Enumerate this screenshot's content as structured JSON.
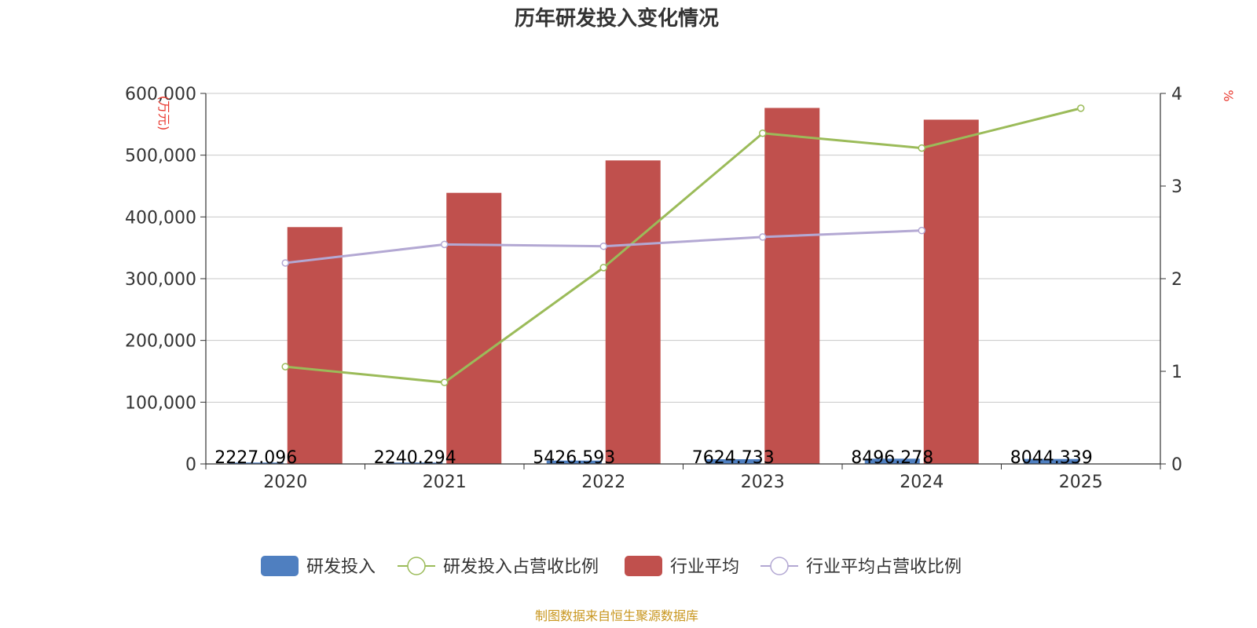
{
  "title": "历年研发投入变化情况",
  "source": "制图数据来自恒生聚源数据库",
  "chart_data": {
    "type": "bar",
    "categories": [
      "2020",
      "2021",
      "2022",
      "2023",
      "2024",
      "2025"
    ],
    "y_left": {
      "unit": "(万元)",
      "ylim": [
        0,
        600000
      ],
      "ticks": [
        "0",
        "100,000",
        "200,000",
        "300,000",
        "400,000",
        "500,000",
        "600,000"
      ]
    },
    "y_right": {
      "unit": "%",
      "ylim": [
        0,
        4
      ],
      "ticks": [
        "0",
        "1",
        "2",
        "3",
        "4"
      ]
    },
    "grid": true,
    "legend_position": "bottom",
    "series": [
      {
        "name": "研发投入",
        "type": "bar",
        "axis": "left",
        "color": "#4f7fc0",
        "values": [
          2227.096,
          2240.294,
          5426.593,
          7624.733,
          8496.278,
          8044.339
        ],
        "labels": [
          "2227.096",
          "2240.294",
          "5426.593",
          "7624.733",
          "8496.278",
          "8044.339"
        ]
      },
      {
        "name": "研发投入占营收比例",
        "type": "line",
        "axis": "right",
        "color": "#9bbb59",
        "values": [
          1.05,
          0.88,
          2.12,
          3.57,
          3.41,
          3.84
        ]
      },
      {
        "name": "行业平均",
        "type": "bar",
        "axis": "left",
        "color": "#c0504d",
        "values": [
          383500,
          439000,
          491500,
          576500,
          557500,
          null
        ]
      },
      {
        "name": "行业平均占营收比例",
        "type": "line",
        "axis": "right",
        "color": "#b3a8d3",
        "values": [
          2.17,
          2.37,
          2.35,
          2.45,
          2.52,
          null
        ]
      }
    ]
  }
}
